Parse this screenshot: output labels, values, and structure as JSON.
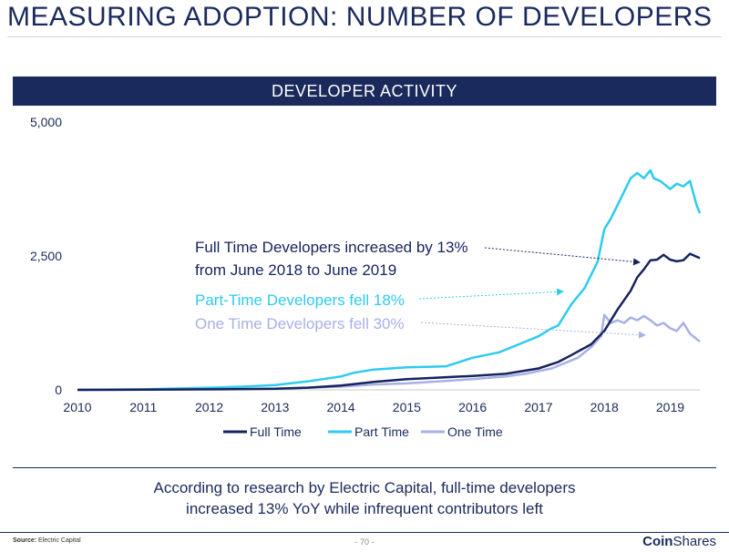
{
  "slide": {
    "title": "MEASURING ADOPTION: NUMBER OF DEVELOPERS",
    "banner": "DEVELOPER ACTIVITY",
    "note_line1": "According to research by Electric Capital, full-time developers",
    "note_line2": "increased 13% YoY while infrequent contributors left",
    "source_label": "Source:",
    "source_value": "Electric Capital",
    "page_number": "- 70 -",
    "logo_bold": "Coin",
    "logo_regular": "Shares"
  },
  "colors": {
    "navy": "#1b2a5c",
    "full_time": "#16235e",
    "part_time": "#2ecbef",
    "one_time": "#a8b0e6"
  },
  "chart_data": {
    "type": "line",
    "title": "DEVELOPER ACTIVITY",
    "xlabel": "",
    "ylabel": "",
    "xlim": [
      2010.0,
      2019.45
    ],
    "ylim": [
      0,
      5000
    ],
    "x_ticks": [
      "2010",
      "2011",
      "2012",
      "2013",
      "2014",
      "2015",
      "2016",
      "2017",
      "2018",
      "2019"
    ],
    "y_ticks": [
      "0",
      "2,500",
      "5,000"
    ],
    "grid": false,
    "legend_position": "bottom",
    "series": [
      {
        "name": "Full Time",
        "color_key": "full_time",
        "x": [
          2010.0,
          2011.0,
          2012.0,
          2013.0,
          2013.5,
          2014.0,
          2014.5,
          2015.0,
          2015.5,
          2016.0,
          2016.5,
          2017.0,
          2017.3,
          2017.5,
          2017.8,
          2018.0,
          2018.2,
          2018.4,
          2018.5,
          2018.6,
          2018.7,
          2018.8,
          2018.9,
          2019.0,
          2019.1,
          2019.2,
          2019.3,
          2019.45
        ],
        "y": [
          0,
          5,
          10,
          20,
          40,
          80,
          150,
          200,
          230,
          260,
          300,
          400,
          520,
          650,
          850,
          1100,
          1500,
          1850,
          2100,
          2250,
          2420,
          2430,
          2520,
          2430,
          2400,
          2420,
          2540,
          2460
        ]
      },
      {
        "name": "Part Time",
        "color_key": "part_time",
        "x": [
          2010.0,
          2011.0,
          2012.0,
          2012.5,
          2013.0,
          2013.5,
          2014.0,
          2014.2,
          2014.5,
          2015.0,
          2015.3,
          2015.6,
          2015.8,
          2016.0,
          2016.2,
          2016.4,
          2016.6,
          2016.8,
          2017.0,
          2017.2,
          2017.3,
          2017.5,
          2017.7,
          2017.9,
          2018.0,
          2018.1,
          2018.2,
          2018.3,
          2018.4,
          2018.5,
          2018.6,
          2018.7,
          2018.75,
          2018.85,
          2018.95,
          2019.0,
          2019.1,
          2019.2,
          2019.3,
          2019.4,
          2019.45
        ],
        "y": [
          0,
          10,
          40,
          60,
          90,
          160,
          250,
          320,
          380,
          420,
          430,
          440,
          520,
          600,
          650,
          700,
          800,
          900,
          1000,
          1150,
          1200,
          1600,
          1900,
          2400,
          3000,
          3200,
          3450,
          3700,
          3950,
          4050,
          3950,
          4100,
          3950,
          3900,
          3800,
          3750,
          3850,
          3800,
          3900,
          3450,
          3300
        ]
      },
      {
        "name": "One Time",
        "color_key": "one_time",
        "x": [
          2010.0,
          2011.0,
          2012.0,
          2013.0,
          2013.5,
          2014.0,
          2014.5,
          2015.0,
          2015.5,
          2016.0,
          2016.5,
          2016.8,
          2017.0,
          2017.2,
          2017.4,
          2017.6,
          2017.8,
          2017.95,
          2018.0,
          2018.1,
          2018.2,
          2018.3,
          2018.4,
          2018.5,
          2018.6,
          2018.7,
          2018.8,
          2018.9,
          2019.0,
          2019.1,
          2019.2,
          2019.3,
          2019.4,
          2019.45
        ],
        "y": [
          0,
          5,
          10,
          20,
          40,
          60,
          100,
          120,
          160,
          200,
          250,
          300,
          350,
          400,
          500,
          600,
          800,
          1000,
          1400,
          1250,
          1300,
          1250,
          1350,
          1300,
          1380,
          1300,
          1200,
          1250,
          1150,
          1100,
          1250,
          1050,
          950,
          900
        ]
      }
    ],
    "annotations": [
      {
        "line1": "Full Time Developers increased by 13%",
        "line2": "from June 2018 to June 2019",
        "color_key": "full_time"
      },
      {
        "line1": "Part-Time Developers fell 18%",
        "color_key": "part_time"
      },
      {
        "line1": "One Time Developers fell 30%",
        "color_key": "one_time"
      }
    ]
  }
}
